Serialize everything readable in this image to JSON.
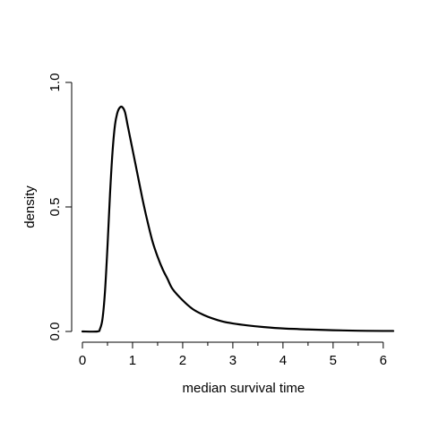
{
  "chart_data": {
    "type": "line",
    "title": "",
    "xlabel": "median survival time",
    "ylabel": "density",
    "xlim": [
      0,
      6.2
    ],
    "ylim": [
      0,
      1.0
    ],
    "x_ticks": [
      0,
      1,
      2,
      3,
      4,
      5,
      6
    ],
    "x_tick_labels": [
      "0",
      "1",
      "2",
      "3",
      "4",
      "5",
      "6"
    ],
    "x_minor_ticks": [
      0.5,
      1.5,
      2.5,
      3.5,
      4.5,
      5.5
    ],
    "y_ticks": [
      0,
      0.5,
      1.0
    ],
    "y_tick_labels": [
      "0.0",
      "0.5",
      "1.0"
    ],
    "grid": false,
    "legend": "none",
    "line_color": "#000000",
    "series": [
      {
        "x": [
          0.0,
          0.3,
          0.35,
          0.4,
          0.45,
          0.5,
          0.55,
          0.6,
          0.65,
          0.7,
          0.75,
          0.8,
          0.85,
          0.9,
          0.95,
          1.0,
          1.1,
          1.2,
          1.3,
          1.4,
          1.5,
          1.6,
          1.7,
          1.8,
          2.0,
          2.2,
          2.4,
          2.6,
          2.8,
          3.0,
          3.3,
          3.6,
          4.0,
          4.5,
          5.0,
          5.5,
          6.0,
          6.2
        ],
        "y": [
          0.0,
          0.0,
          0.01,
          0.05,
          0.16,
          0.34,
          0.55,
          0.72,
          0.83,
          0.88,
          0.9,
          0.9,
          0.88,
          0.83,
          0.78,
          0.73,
          0.63,
          0.53,
          0.44,
          0.36,
          0.3,
          0.25,
          0.21,
          0.17,
          0.125,
          0.09,
          0.068,
          0.052,
          0.04,
          0.032,
          0.024,
          0.018,
          0.012,
          0.008,
          0.005,
          0.003,
          0.002,
          0.002
        ]
      }
    ]
  }
}
